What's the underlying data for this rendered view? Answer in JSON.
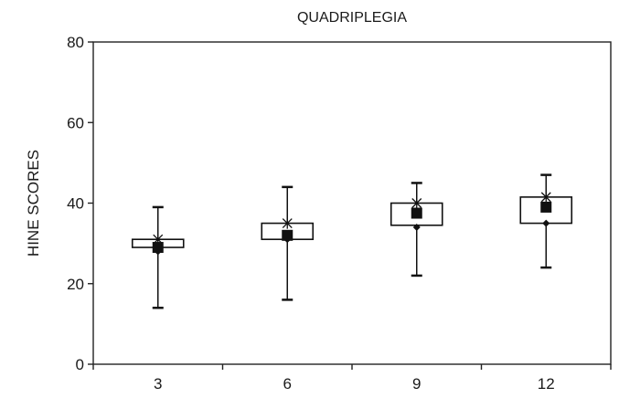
{
  "chart_data": {
    "type": "box",
    "title": "QUADRIPLEGIA",
    "xlabel": "",
    "ylabel": "HINE SCORES",
    "categories": [
      "3",
      "6",
      "9",
      "12"
    ],
    "ylim": [
      0,
      80
    ],
    "yticks": [
      0,
      20,
      40,
      60,
      80
    ],
    "grid": false,
    "series": [
      {
        "values": [
          {
            "category": "3",
            "min": 14,
            "q1": 29,
            "median": 29,
            "q3": 31,
            "max": 39,
            "mean": 29,
            "star": 31,
            "diamond": 28
          },
          {
            "category": "6",
            "min": 16,
            "q1": 31,
            "median": 31,
            "q3": 35,
            "max": 44,
            "mean": 32,
            "star": 35,
            "diamond": 31
          },
          {
            "category": "9",
            "min": 22,
            "q1": 34.5,
            "median": 34.5,
            "q3": 40,
            "max": 45,
            "mean": 37.5,
            "star": 40,
            "diamond": 34
          },
          {
            "category": "12",
            "min": 24,
            "q1": 35,
            "median": 35,
            "q3": 41.5,
            "max": 47,
            "mean": 39,
            "star": 41.5,
            "diamond": 35
          }
        ]
      }
    ]
  }
}
